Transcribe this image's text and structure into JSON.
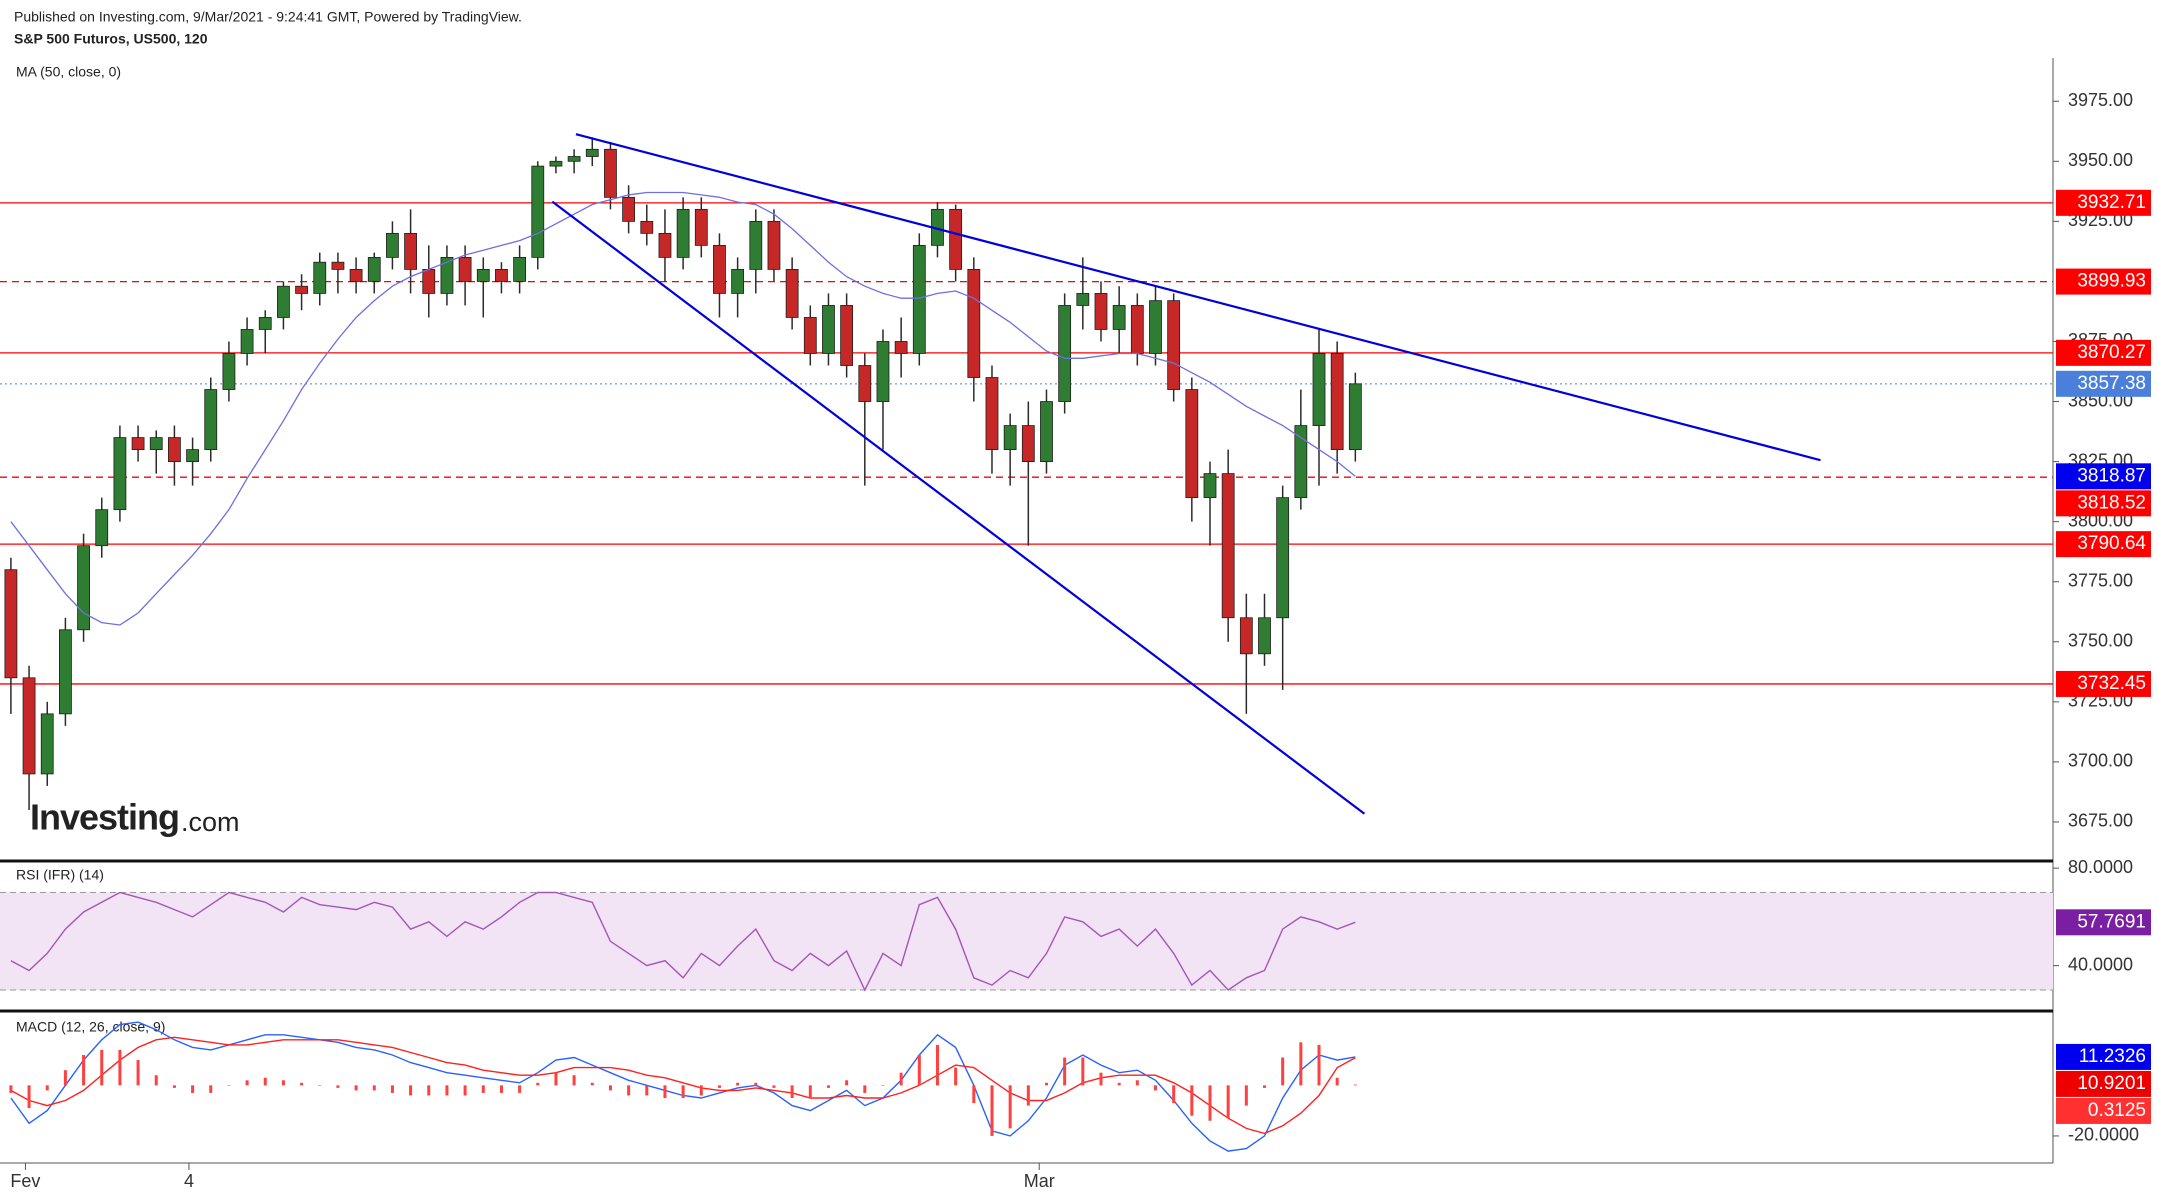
{
  "header": {
    "published": "Published on Investing.com, 9/Mar/2021 - 9:24:41 GMT, Powered by TradingView.",
    "symbol": "S&P 500 Futuros, US500, 120",
    "logo": "Investing",
    "logo_suffix": ".com"
  },
  "chart_data": [
    {
      "type": "candlestick",
      "title": "MA (50, close, 0)",
      "xlim": [
        -0.6,
        112.4
      ],
      "xticks": [
        {
          "value": 0.8,
          "label": "Fev"
        },
        {
          "value": 9.8,
          "label": "4"
        },
        {
          "value": 56.6,
          "label": "Mar"
        }
      ],
      "ylim": [
        3660,
        3993
      ],
      "yticks": [
        {
          "value": 3975,
          "label": "3975.00"
        },
        {
          "value": 3950,
          "label": "3950.00"
        },
        {
          "value": 3925,
          "label": "3925.00"
        },
        {
          "value": 3875,
          "label": "3875.00"
        },
        {
          "value": 3850,
          "label": "3850.00"
        },
        {
          "value": 3825,
          "label": "3825.00"
        },
        {
          "value": 3800,
          "label": "3800.00"
        },
        {
          "value": 3775,
          "label": "3775.00"
        },
        {
          "value": 3750,
          "label": "3750.00"
        },
        {
          "value": 3725,
          "label": "3725.00"
        },
        {
          "value": 3700,
          "label": "3700.00"
        },
        {
          "value": 3675,
          "label": "3675.00"
        }
      ],
      "up_color": "#2e7d32",
      "down_color": "#c62828",
      "last_color": "#4a7fdc",
      "ohlc": [
        [
          3780,
          3785,
          3720,
          3735
        ],
        [
          3735,
          3740,
          3680,
          3695
        ],
        [
          3695,
          3725,
          3690,
          3720
        ],
        [
          3720,
          3760,
          3715,
          3755
        ],
        [
          3755,
          3795,
          3750,
          3790
        ],
        [
          3790,
          3810,
          3785,
          3805
        ],
        [
          3805,
          3840,
          3800,
          3835
        ],
        [
          3835,
          3840,
          3825,
          3830
        ],
        [
          3830,
          3838,
          3820,
          3835
        ],
        [
          3835,
          3840,
          3815,
          3825
        ],
        [
          3825,
          3835,
          3815,
          3830
        ],
        [
          3830,
          3860,
          3825,
          3855
        ],
        [
          3855,
          3875,
          3850,
          3870
        ],
        [
          3870,
          3885,
          3865,
          3880
        ],
        [
          3880,
          3888,
          3870,
          3885
        ],
        [
          3885,
          3900,
          3880,
          3898
        ],
        [
          3898,
          3903,
          3888,
          3895
        ],
        [
          3895,
          3912,
          3890,
          3908
        ],
        [
          3908,
          3912,
          3895,
          3905
        ],
        [
          3905,
          3910,
          3895,
          3900
        ],
        [
          3900,
          3912,
          3895,
          3910
        ],
        [
          3910,
          3925,
          3905,
          3920
        ],
        [
          3920,
          3930,
          3895,
          3905
        ],
        [
          3905,
          3915,
          3885,
          3895
        ],
        [
          3895,
          3915,
          3890,
          3910
        ],
        [
          3910,
          3915,
          3890,
          3900
        ],
        [
          3900,
          3910,
          3885,
          3905
        ],
        [
          3905,
          3908,
          3895,
          3900
        ],
        [
          3900,
          3915,
          3895,
          3910
        ],
        [
          3910,
          3950,
          3905,
          3948
        ],
        [
          3948,
          3952,
          3945,
          3950
        ],
        [
          3950,
          3955,
          3945,
          3952
        ],
        [
          3952,
          3960,
          3948,
          3955
        ],
        [
          3955,
          3958,
          3930,
          3935
        ],
        [
          3935,
          3940,
          3920,
          3925
        ],
        [
          3925,
          3932,
          3915,
          3920
        ],
        [
          3920,
          3930,
          3900,
          3910
        ],
        [
          3910,
          3935,
          3905,
          3930
        ],
        [
          3930,
          3935,
          3910,
          3915
        ],
        [
          3915,
          3920,
          3885,
          3895
        ],
        [
          3895,
          3910,
          3885,
          3905
        ],
        [
          3905,
          3930,
          3895,
          3925
        ],
        [
          3925,
          3930,
          3900,
          3905
        ],
        [
          3905,
          3910,
          3880,
          3885
        ],
        [
          3885,
          3890,
          3865,
          3870
        ],
        [
          3870,
          3895,
          3865,
          3890
        ],
        [
          3890,
          3895,
          3860,
          3865
        ],
        [
          3865,
          3870,
          3815,
          3850
        ],
        [
          3850,
          3880,
          3830,
          3875
        ],
        [
          3875,
          3885,
          3860,
          3870
        ],
        [
          3870,
          3920,
          3865,
          3915
        ],
        [
          3915,
          3933,
          3910,
          3930
        ],
        [
          3930,
          3932,
          3900,
          3905
        ],
        [
          3905,
          3910,
          3850,
          3860
        ],
        [
          3860,
          3865,
          3820,
          3830
        ],
        [
          3830,
          3845,
          3815,
          3840
        ],
        [
          3840,
          3850,
          3790,
          3825
        ],
        [
          3825,
          3855,
          3820,
          3850
        ],
        [
          3850,
          3895,
          3845,
          3890
        ],
        [
          3890,
          3910,
          3880,
          3895
        ],
        [
          3895,
          3900,
          3875,
          3880
        ],
        [
          3880,
          3898,
          3870,
          3890
        ],
        [
          3890,
          3895,
          3865,
          3870
        ],
        [
          3870,
          3898,
          3865,
          3892
        ],
        [
          3892,
          3895,
          3850,
          3855
        ],
        [
          3855,
          3860,
          3800,
          3810
        ],
        [
          3810,
          3825,
          3790,
          3820
        ],
        [
          3820,
          3830,
          3750,
          3760
        ],
        [
          3760,
          3770,
          3720,
          3745
        ],
        [
          3745,
          3770,
          3740,
          3760
        ],
        [
          3760,
          3815,
          3730,
          3810
        ],
        [
          3810,
          3855,
          3805,
          3840
        ],
        [
          3840,
          3880,
          3815,
          3870
        ],
        [
          3870,
          3875,
          3820,
          3830
        ],
        [
          3830,
          3862,
          3825,
          3857.38
        ]
      ],
      "ma": {
        "color": "#6f6fe0",
        "label_color": "#0000ee",
        "values": [
          3800,
          3790,
          3780,
          3770,
          3762,
          3758,
          3757,
          3762,
          3770,
          3778,
          3786,
          3795,
          3805,
          3818,
          3830,
          3842,
          3855,
          3866,
          3876,
          3885,
          3892,
          3898,
          3902,
          3905,
          3908,
          3911,
          3913,
          3915,
          3917,
          3920,
          3924,
          3928,
          3932,
          3934,
          3936,
          3937,
          3937,
          3937,
          3936,
          3935,
          3933,
          3932,
          3928,
          3922,
          3915,
          3908,
          3902,
          3898,
          3895,
          3893,
          3893,
          3895,
          3896,
          3893,
          3888,
          3883,
          3877,
          3871,
          3868,
          3868,
          3869,
          3870,
          3870,
          3868,
          3866,
          3862,
          3858,
          3853,
          3848,
          3844,
          3840,
          3835,
          3830,
          3825,
          3818.87
        ]
      },
      "levels": [
        {
          "value": 3932.71,
          "style": "solid",
          "color": "#ff0000"
        },
        {
          "value": 3899.93,
          "style": "dashed",
          "color": "#ff0000"
        },
        {
          "value": 3870.27,
          "style": "solid",
          "color": "#ff0000"
        },
        {
          "value": 3818.52,
          "style": "dashed",
          "color": "#ff0000"
        },
        {
          "value": 3790.64,
          "style": "solid",
          "color": "#ff0000"
        },
        {
          "value": 3732.45,
          "style": "solid",
          "color": "#ff0000"
        }
      ],
      "trendlines": {
        "color": "#0000dd",
        "lines": [
          {
            "x": [
              31.1,
              99.6
            ],
            "y": [
              3961.3,
              3825.6
            ]
          },
          {
            "x": [
              29.8,
              74.5
            ],
            "y": [
              3933.2,
              3678.4
            ]
          }
        ]
      }
    },
    {
      "type": "line",
      "title": "RSI (IFR) (14)",
      "ylim": [
        22.2,
        81.7
      ],
      "yticks": [
        {
          "value": 80,
          "label": "80.0000"
        },
        {
          "value": 40,
          "label": "40.0000"
        }
      ],
      "band": [
        30,
        70
      ],
      "band_color": "#f2e4f4",
      "series": [
        {
          "color": "#a456b8",
          "label_color": "#7b1fa2",
          "values": [
            42,
            38,
            45,
            55,
            62,
            66,
            70,
            68,
            66,
            63,
            60,
            65,
            70,
            68,
            66,
            62,
            68,
            65,
            64,
            63,
            66,
            64,
            55,
            58,
            52,
            58,
            55,
            60,
            66,
            70,
            70,
            68,
            66,
            50,
            45,
            40,
            42,
            35,
            45,
            40,
            48,
            55,
            42,
            38,
            45,
            40,
            46,
            30,
            45,
            40,
            65,
            68,
            55,
            35,
            32,
            38,
            35,
            45,
            60,
            58,
            52,
            55,
            48,
            55,
            45,
            32,
            38,
            30,
            35,
            38,
            55,
            60,
            58,
            55,
            57.7691
          ]
        }
      ]
    },
    {
      "type": "macd",
      "title": "MACD (12, 26, close, 9)",
      "ylim": [
        -30.3,
        28.6
      ],
      "yticks": [
        {
          "value": -20,
          "label": "-20.0000"
        }
      ],
      "series": [
        {
          "kind": "line",
          "color": "#2962ff",
          "label_color": "#0000ee",
          "values": [
            -5,
            -15,
            -10,
            0,
            10,
            18,
            24,
            25,
            22,
            18,
            15,
            14,
            16,
            18,
            20,
            20,
            19,
            18,
            17,
            15,
            14,
            12,
            9,
            7,
            5,
            4,
            3,
            2,
            1,
            5,
            10,
            11,
            8,
            5,
            2,
            0,
            -2,
            -4,
            -5,
            -3,
            -1,
            0,
            -3,
            -8,
            -10,
            -6,
            -2,
            -8,
            -5,
            2,
            12,
            20,
            15,
            0,
            -18,
            -20,
            -14,
            -5,
            8,
            12,
            8,
            5,
            6,
            2,
            -6,
            -15,
            -22,
            -26,
            -25,
            -20,
            -5,
            6,
            12,
            10,
            11.2326
          ]
        },
        {
          "kind": "line",
          "color": "#ff2020",
          "label_color": "#ee0000",
          "values": [
            -2,
            -6,
            -8,
            -6,
            -2,
            4,
            10,
            15,
            18,
            19,
            18,
            17,
            16,
            16,
            17,
            18,
            18,
            18,
            18,
            17,
            16,
            15,
            13,
            11,
            9,
            8,
            6,
            5,
            4,
            4,
            5,
            7,
            7,
            7,
            6,
            4,
            3,
            1,
            -1,
            -2,
            -2,
            -1,
            -2,
            -3,
            -5,
            -5,
            -4,
            -5,
            -5,
            -3,
            0,
            4,
            8,
            7,
            2,
            -3,
            -6,
            -6,
            -3,
            1,
            3,
            4,
            4,
            4,
            1,
            -3,
            -8,
            -13,
            -17,
            -19,
            -16,
            -11,
            -4,
            7,
            10.9201
          ]
        },
        {
          "kind": "histogram",
          "color": "#ff4040",
          "label_color": "#ff3030",
          "values": [
            -3,
            -9,
            -2,
            6,
            12,
            14,
            14,
            10,
            4,
            -1,
            -3,
            -3,
            0,
            2,
            3,
            2,
            1,
            0,
            -1,
            -2,
            -2,
            -3,
            -4,
            -4,
            -4,
            -4,
            -3,
            -3,
            -3,
            1,
            5,
            4,
            1,
            -2,
            -4,
            -4,
            -5,
            -5,
            -4,
            -1,
            1,
            1,
            -1,
            -5,
            -5,
            -1,
            2,
            -3,
            0,
            5,
            12,
            16,
            7,
            -7,
            -20,
            -17,
            -8,
            1,
            11,
            11,
            5,
            1,
            2,
            -2,
            -7,
            -12,
            -14,
            -13,
            -8,
            -1,
            11,
            17,
            16,
            3,
            0.3125
          ]
        }
      ]
    }
  ]
}
